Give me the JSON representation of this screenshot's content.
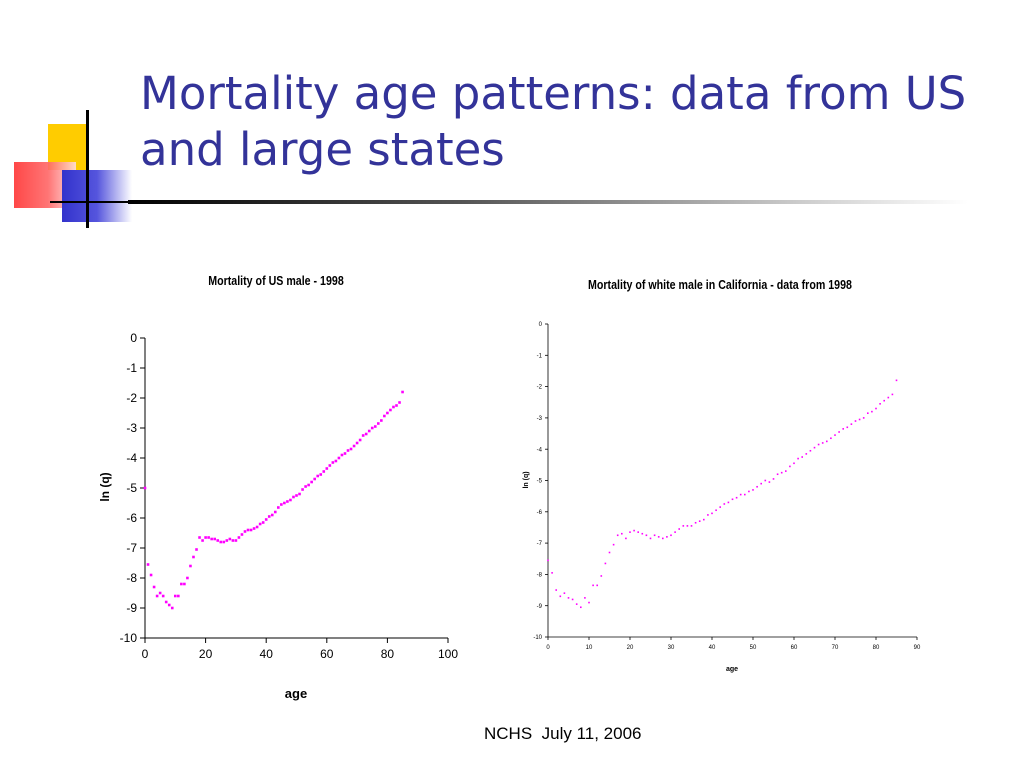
{
  "slide": {
    "title": "Mortality age patterns: data from US and large states",
    "footer": "NCHS  July 11, 2006"
  },
  "colors": {
    "title": "#333399",
    "accent_yellow": "#ffcc00",
    "accent_red": "#ff3333",
    "accent_blue": "#3333cc",
    "series": "#ff00ff"
  },
  "chart_data": [
    {
      "type": "scatter",
      "title": "Mortality of US male - 1998",
      "xlabel": "age",
      "ylabel": "ln (q)",
      "xlim": [
        0,
        100
      ],
      "ylim": [
        -10,
        0
      ],
      "xticks": [
        0,
        20,
        40,
        60,
        80,
        100
      ],
      "yticks": [
        0,
        -1,
        -2,
        -3,
        -4,
        -5,
        -6,
        -7,
        -8,
        -9,
        -10
      ],
      "grid": false,
      "series": [
        {
          "x": [
            0,
            1,
            2,
            3,
            4,
            5,
            6,
            7,
            8,
            9,
            10,
            11,
            12,
            13,
            14,
            15,
            16,
            17,
            18,
            19,
            20,
            21,
            22,
            23,
            24,
            25,
            26,
            27,
            28,
            29,
            30,
            31,
            32,
            33,
            34,
            35,
            36,
            37,
            38,
            39,
            40,
            41,
            42,
            43,
            44,
            45,
            46,
            47,
            48,
            49,
            50,
            51,
            52,
            53,
            54,
            55,
            56,
            57,
            58,
            59,
            60,
            61,
            62,
            63,
            64,
            65,
            66,
            67,
            68,
            69,
            70,
            71,
            72,
            73,
            74,
            75,
            76,
            77,
            78,
            79,
            80,
            81,
            82,
            83,
            84,
            85
          ],
          "y": [
            -5.0,
            -7.55,
            -7.9,
            -8.3,
            -8.6,
            -8.5,
            -8.6,
            -8.8,
            -8.9,
            -9.0,
            -8.6,
            -8.6,
            -8.2,
            -8.2,
            -8.0,
            -7.6,
            -7.3,
            -7.05,
            -6.65,
            -6.75,
            -6.65,
            -6.65,
            -6.7,
            -6.7,
            -6.75,
            -6.8,
            -6.8,
            -6.75,
            -6.7,
            -6.75,
            -6.75,
            -6.65,
            -6.55,
            -6.45,
            -6.4,
            -6.4,
            -6.35,
            -6.3,
            -6.2,
            -6.15,
            -6.05,
            -5.95,
            -5.9,
            -5.8,
            -5.65,
            -5.55,
            -5.5,
            -5.45,
            -5.4,
            -5.3,
            -5.25,
            -5.2,
            -5.05,
            -4.95,
            -4.9,
            -4.8,
            -4.7,
            -4.6,
            -4.55,
            -4.45,
            -4.35,
            -4.25,
            -4.15,
            -4.1,
            -4.0,
            -3.9,
            -3.85,
            -3.75,
            -3.7,
            -3.6,
            -3.5,
            -3.4,
            -3.25,
            -3.2,
            -3.1,
            -3.0,
            -2.95,
            -2.85,
            -2.75,
            -2.6,
            -2.5,
            -2.4,
            -2.3,
            -2.25,
            -2.15,
            -1.8
          ]
        }
      ]
    },
    {
      "type": "scatter",
      "title": "Mortality of white male in California - data from 1998",
      "xlabel": "age",
      "ylabel": "ln (q)",
      "xlim": [
        0,
        90
      ],
      "ylim": [
        -10,
        0
      ],
      "xticks": [
        0,
        10,
        20,
        30,
        40,
        50,
        60,
        70,
        80,
        90
      ],
      "yticks": [
        0,
        -1,
        -2,
        -3,
        -4,
        -5,
        -6,
        -7,
        -8,
        -9,
        -10
      ],
      "grid": false,
      "series": [
        {
          "x": [
            0,
            1,
            2,
            3,
            4,
            5,
            6,
            7,
            8,
            9,
            10,
            11,
            12,
            13,
            14,
            15,
            16,
            17,
            18,
            19,
            20,
            21,
            22,
            23,
            24,
            25,
            26,
            27,
            28,
            29,
            30,
            31,
            32,
            33,
            34,
            35,
            36,
            37,
            38,
            39,
            40,
            41,
            42,
            43,
            44,
            45,
            46,
            47,
            48,
            49,
            50,
            51,
            52,
            53,
            54,
            55,
            56,
            57,
            58,
            59,
            60,
            61,
            62,
            63,
            64,
            65,
            66,
            67,
            68,
            69,
            70,
            71,
            72,
            73,
            74,
            75,
            76,
            77,
            78,
            79,
            80,
            81,
            82,
            83,
            84,
            85
          ],
          "y": [
            -7.55,
            -7.95,
            -8.5,
            -8.7,
            -8.6,
            -8.75,
            -8.8,
            -8.95,
            -9.05,
            -8.75,
            -8.9,
            -8.35,
            -8.35,
            -8.05,
            -7.65,
            -7.3,
            -7.05,
            -6.75,
            -6.7,
            -6.85,
            -6.65,
            -6.6,
            -6.65,
            -6.7,
            -6.75,
            -6.85,
            -6.75,
            -6.8,
            -6.85,
            -6.8,
            -6.75,
            -6.65,
            -6.55,
            -6.45,
            -6.45,
            -6.45,
            -6.35,
            -6.3,
            -6.25,
            -6.1,
            -6.05,
            -5.95,
            -5.85,
            -5.75,
            -5.7,
            -5.6,
            -5.55,
            -5.45,
            -5.45,
            -5.35,
            -5.3,
            -5.2,
            -5.1,
            -5.0,
            -5.05,
            -4.95,
            -4.8,
            -4.75,
            -4.7,
            -4.55,
            -4.45,
            -4.3,
            -4.25,
            -4.15,
            -4.05,
            -3.95,
            -3.85,
            -3.8,
            -3.75,
            -3.65,
            -3.55,
            -3.45,
            -3.35,
            -3.3,
            -3.2,
            -3.1,
            -3.05,
            -3.0,
            -2.85,
            -2.8,
            -2.7,
            -2.55,
            -2.45,
            -2.35,
            -2.25,
            -1.8
          ]
        }
      ]
    }
  ]
}
